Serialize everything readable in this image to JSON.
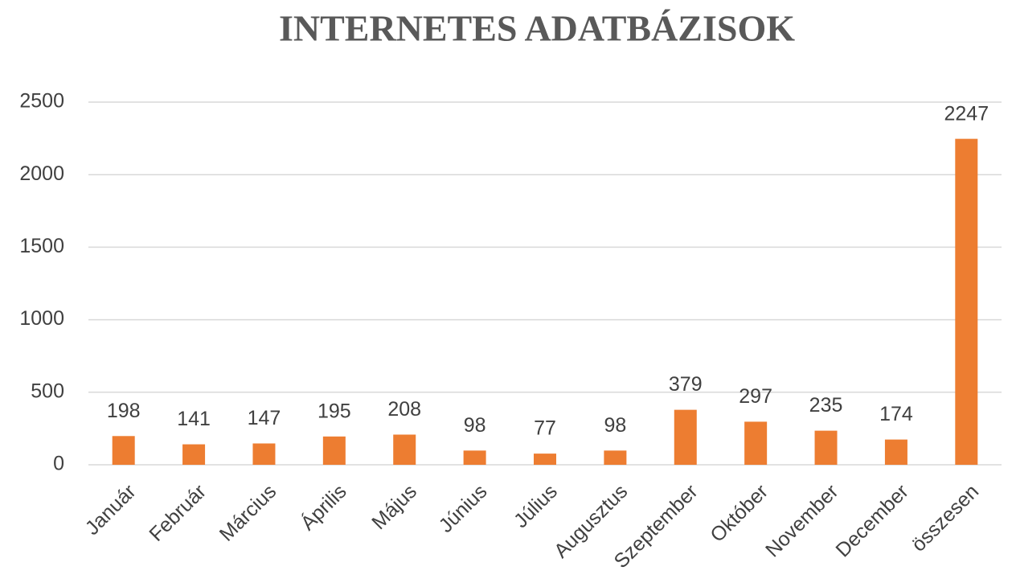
{
  "chart_data": {
    "type": "bar",
    "title": "INTERNETES ADATBÁZISOK",
    "categories": [
      "Január",
      "Február",
      "Március",
      "Április",
      "Május",
      "Június",
      "Július",
      "Augusztus",
      "Szeptember",
      "Október",
      "November",
      "December",
      "összesen"
    ],
    "values": [
      198,
      141,
      147,
      195,
      208,
      98,
      77,
      98,
      379,
      297,
      235,
      174,
      2247
    ],
    "color": "#ed7d31",
    "ylim": [
      0,
      2500
    ],
    "yticks": [
      0,
      500,
      1000,
      1500,
      2000,
      2500
    ],
    "grid": true
  }
}
